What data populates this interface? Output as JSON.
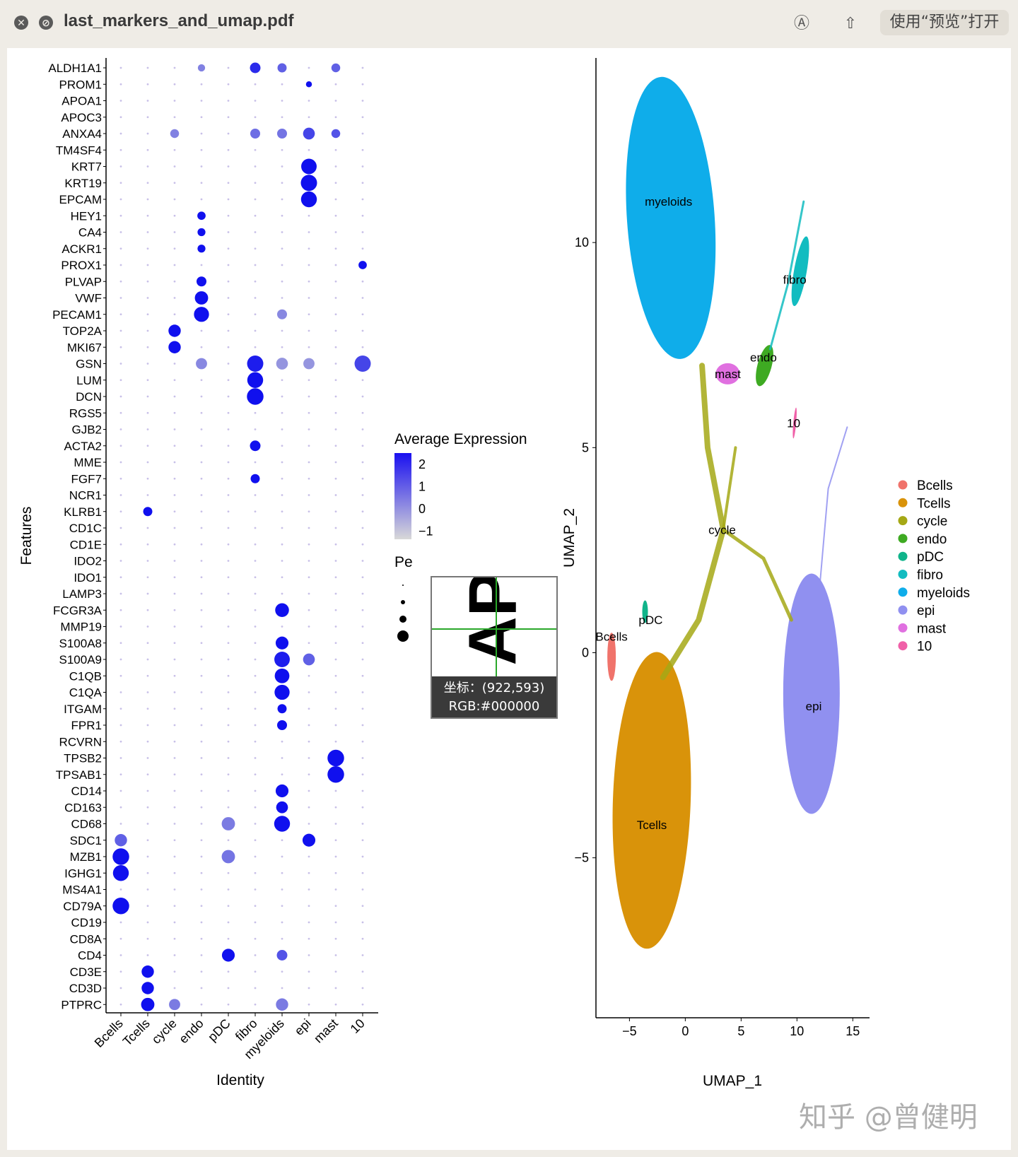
{
  "window": {
    "filename": "last_markers_and_umap.pdf",
    "open_button": "使用“预览”打开",
    "close_icon": "close-icon",
    "stop_icon": "stop-icon",
    "markup_icon": "markup-icon",
    "share_icon": "share-icon"
  },
  "magnifier": {
    "coords": "坐标：(922,593)",
    "rgb": "RGB:#000000",
    "glyph": "AP"
  },
  "watermark": "知乎 @曾健明",
  "chart_data": [
    {
      "type": "scatter",
      "subtype": "dotplot",
      "xlabel": "Identity",
      "ylabel": "Features",
      "identities": [
        "Bcells",
        "Tcells",
        "cycle",
        "endo",
        "pDC",
        "fibro",
        "myeloids",
        "epi",
        "mast",
        "10"
      ],
      "features": [
        "ALDH1A1",
        "PROM1",
        "APOA1",
        "APOC3",
        "ANXA4",
        "TM4SF4",
        "KRT7",
        "KRT19",
        "EPCAM",
        "HEY1",
        "CA4",
        "ACKR1",
        "PROX1",
        "PLVAP",
        "VWF",
        "PECAM1",
        "TOP2A",
        "MKI67",
        "GSN",
        "LUM",
        "DCN",
        "RGS5",
        "GJB2",
        "ACTA2",
        "MME",
        "FGF7",
        "NCR1",
        "KLRB1",
        "CD1C",
        "CD1E",
        "IDO2",
        "IDO1",
        "LAMP3",
        "FCGR3A",
        "MMP19",
        "S100A8",
        "S100A9",
        "C1QB",
        "C1QA",
        "ITGAM",
        "FPR1",
        "RCVRN",
        "TPSB2",
        "TPSAB1",
        "CD14",
        "CD163",
        "CD68",
        "SDC1",
        "MZB1",
        "IGHG1",
        "MS4A1",
        "CD79A",
        "CD19",
        "CD8A",
        "CD4",
        "CD3E",
        "CD3D",
        "PTPRC"
      ],
      "highlights": [
        {
          "feature": "ALDH1A1",
          "identity": "fibro",
          "expr": 1.6,
          "pct": 30
        },
        {
          "feature": "ALDH1A1",
          "identity": "myeloids",
          "expr": 0.8,
          "pct": 20
        },
        {
          "feature": "ALDH1A1",
          "identity": "mast",
          "expr": 0.8,
          "pct": 18
        },
        {
          "feature": "ALDH1A1",
          "identity": "endo",
          "expr": 0.3,
          "pct": 10
        },
        {
          "feature": "PROM1",
          "identity": "epi",
          "expr": 2,
          "pct": 5
        },
        {
          "feature": "ANXA4",
          "identity": "epi",
          "expr": 1.2,
          "pct": 40
        },
        {
          "feature": "ANXA4",
          "identity": "fibro",
          "expr": 0.6,
          "pct": 25
        },
        {
          "feature": "ANXA4",
          "identity": "myeloids",
          "expr": 0.5,
          "pct": 25
        },
        {
          "feature": "ANXA4",
          "identity": "mast",
          "expr": 1.0,
          "pct": 18
        },
        {
          "feature": "ANXA4",
          "identity": "cycle",
          "expr": 0.3,
          "pct": 18
        },
        {
          "feature": "KRT7",
          "identity": "epi",
          "expr": 2,
          "pct": 80
        },
        {
          "feature": "KRT19",
          "identity": "epi",
          "expr": 2,
          "pct": 90
        },
        {
          "feature": "EPCAM",
          "identity": "epi",
          "expr": 2,
          "pct": 85
        },
        {
          "feature": "HEY1",
          "identity": "endo",
          "expr": 2,
          "pct": 15
        },
        {
          "feature": "CA4",
          "identity": "endo",
          "expr": 2,
          "pct": 13
        },
        {
          "feature": "ACKR1",
          "identity": "endo",
          "expr": 2,
          "pct": 13
        },
        {
          "feature": "PROX1",
          "identity": "10",
          "expr": 2,
          "pct": 15
        },
        {
          "feature": "PLVAP",
          "identity": "endo",
          "expr": 2,
          "pct": 25
        },
        {
          "feature": "VWF",
          "identity": "endo",
          "expr": 2,
          "pct": 55
        },
        {
          "feature": "PECAM1",
          "identity": "endo",
          "expr": 2,
          "pct": 75
        },
        {
          "feature": "PECAM1",
          "identity": "myeloids",
          "expr": 0.2,
          "pct": 25
        },
        {
          "feature": "TOP2A",
          "identity": "cycle",
          "expr": 2,
          "pct": 45
        },
        {
          "feature": "MKI67",
          "identity": "cycle",
          "expr": 2,
          "pct": 45
        },
        {
          "feature": "GSN",
          "identity": "fibro",
          "expr": 1.8,
          "pct": 90
        },
        {
          "feature": "GSN",
          "identity": "10",
          "expr": 1.2,
          "pct": 90
        },
        {
          "feature": "GSN",
          "identity": "myeloids",
          "expr": 0.0,
          "pct": 40
        },
        {
          "feature": "GSN",
          "identity": "epi",
          "expr": 0.0,
          "pct": 35
        },
        {
          "feature": "GSN",
          "identity": "endo",
          "expr": 0.2,
          "pct": 35
        },
        {
          "feature": "LUM",
          "identity": "fibro",
          "expr": 2,
          "pct": 85
        },
        {
          "feature": "DCN",
          "identity": "fibro",
          "expr": 2,
          "pct": 95
        },
        {
          "feature": "ACTA2",
          "identity": "fibro",
          "expr": 2,
          "pct": 30
        },
        {
          "feature": "FGF7",
          "identity": "fibro",
          "expr": 2,
          "pct": 20
        },
        {
          "feature": "KLRB1",
          "identity": "Tcells",
          "expr": 2,
          "pct": 20
        },
        {
          "feature": "FCGR3A",
          "identity": "myeloids",
          "expr": 2,
          "pct": 60
        },
        {
          "feature": "S100A8",
          "identity": "myeloids",
          "expr": 2,
          "pct": 50
        },
        {
          "feature": "S100A9",
          "identity": "myeloids",
          "expr": 1.8,
          "pct": 80
        },
        {
          "feature": "S100A9",
          "identity": "epi",
          "expr": 0.8,
          "pct": 40
        },
        {
          "feature": "C1QB",
          "identity": "myeloids",
          "expr": 2,
          "pct": 70
        },
        {
          "feature": "C1QA",
          "identity": "myeloids",
          "expr": 2,
          "pct": 75
        },
        {
          "feature": "ITGAM",
          "identity": "myeloids",
          "expr": 2,
          "pct": 20
        },
        {
          "feature": "FPR1",
          "identity": "myeloids",
          "expr": 2,
          "pct": 25
        },
        {
          "feature": "TPSB2",
          "identity": "mast",
          "expr": 2,
          "pct": 95
        },
        {
          "feature": "TPSAB1",
          "identity": "mast",
          "expr": 2,
          "pct": 95
        },
        {
          "feature": "CD14",
          "identity": "myeloids",
          "expr": 2,
          "pct": 50
        },
        {
          "feature": "CD163",
          "identity": "myeloids",
          "expr": 2,
          "pct": 40
        },
        {
          "feature": "CD68",
          "identity": "myeloids",
          "expr": 2,
          "pct": 85
        },
        {
          "feature": "CD68",
          "identity": "pDC",
          "expr": 0.4,
          "pct": 55
        },
        {
          "feature": "SDC1",
          "identity": "epi",
          "expr": 2,
          "pct": 50
        },
        {
          "feature": "SDC1",
          "identity": "Bcells",
          "expr": 0.8,
          "pct": 45
        },
        {
          "feature": "MZB1",
          "identity": "Bcells",
          "expr": 2,
          "pct": 95
        },
        {
          "feature": "MZB1",
          "identity": "pDC",
          "expr": 0.5,
          "pct": 55
        },
        {
          "feature": "IGHG1",
          "identity": "Bcells",
          "expr": 2,
          "pct": 85
        },
        {
          "feature": "CD79A",
          "identity": "Bcells",
          "expr": 2,
          "pct": 95
        },
        {
          "feature": "CD4",
          "identity": "pDC",
          "expr": 2,
          "pct": 50
        },
        {
          "feature": "CD4",
          "identity": "myeloids",
          "expr": 1.0,
          "pct": 30
        },
        {
          "feature": "CD3E",
          "identity": "Tcells",
          "expr": 2,
          "pct": 45
        },
        {
          "feature": "CD3D",
          "identity": "Tcells",
          "expr": 2,
          "pct": 45
        },
        {
          "feature": "PTPRC",
          "identity": "Tcells",
          "expr": 2,
          "pct": 55
        },
        {
          "feature": "PTPRC",
          "identity": "myeloids",
          "expr": 0.4,
          "pct": 45
        },
        {
          "feature": "PTPRC",
          "identity": "cycle",
          "expr": 0.4,
          "pct": 35
        }
      ],
      "legend": {
        "color_title": "Average Expression",
        "color_ticks": [
          "2",
          "1",
          "0",
          "−1"
        ],
        "size_title": "Pe"
      }
    },
    {
      "type": "scatter",
      "subtype": "umap",
      "xlabel": "UMAP_1",
      "ylabel": "UMAP_2",
      "xlim": [
        -8,
        16.5
      ],
      "ylim": [
        -8.9,
        14.5
      ],
      "xticks": [
        "−5",
        "0",
        "5",
        "10",
        "15"
      ],
      "yticks": [
        "10",
        "5",
        "0",
        "−5"
      ],
      "clusters": [
        {
          "name": "Bcells",
          "color": "#f0736b",
          "label": "Bcells",
          "cx": -6.6,
          "cy": 0.4
        },
        {
          "name": "Tcells",
          "color": "#d9930a",
          "label": "Tcells",
          "cx": -3.0,
          "cy": -4.2
        },
        {
          "name": "cycle",
          "color": "#a5a815",
          "label": "cycle",
          "cx": 3.3,
          "cy": 3.0
        },
        {
          "name": "endo",
          "color": "#3eaa22",
          "label": "endo",
          "cx": 7.0,
          "cy": 7.2
        },
        {
          "name": "pDC",
          "color": "#10b48a",
          "label": "pDC",
          "cx": -3.1,
          "cy": 0.8
        },
        {
          "name": "fibro",
          "color": "#12bcc0",
          "label": "fibro",
          "cx": 9.8,
          "cy": 9.1
        },
        {
          "name": "myeloids",
          "color": "#0fadea",
          "label": "myeloids",
          "cx": -1.5,
          "cy": 11.0
        },
        {
          "name": "epi",
          "color": "#9090f0",
          "label": "epi",
          "cx": 11.5,
          "cy": -1.3
        },
        {
          "name": "mast",
          "color": "#e070e0",
          "label": "mast",
          "cx": 3.8,
          "cy": 6.8
        },
        {
          "name": "10",
          "color": "#f060a8",
          "label": "10",
          "cx": 9.7,
          "cy": 5.6
        }
      ]
    }
  ]
}
